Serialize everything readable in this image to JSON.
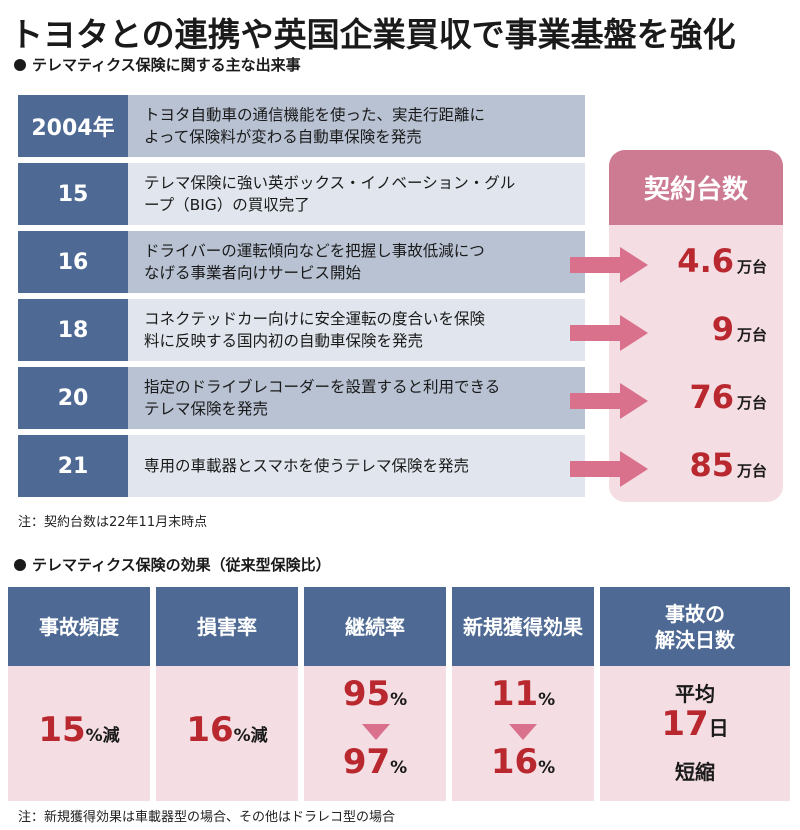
{
  "title": "トヨタとの連携や英国企業買収で事業基盤を強化",
  "section1": {
    "heading": "テレマティクス保険に関する主な出来事"
  },
  "history": [
    {
      "year": "2004年",
      "text1": "トヨタ自動車の通信機能を使った、実走行距離に",
      "text2": "よって保険料が変わる自動車保険を発売"
    },
    {
      "year": "15",
      "text1": "テレマ保険に強い英ボックス・イノベーション・グル",
      "text2": "ープ（BIG）の買収完了"
    },
    {
      "year": "16",
      "text1": "ドライバーの運転傾向などを把握し事故低減につ",
      "text2": "なげる事業者向けサービス開始"
    },
    {
      "year": "18",
      "text1": "コネクテッドカー向けに安全運転の度合いを保険",
      "text2": "料に反映する国内初の自動車保険を発売"
    },
    {
      "year": "20",
      "text1": "指定のドライブレコーダーを設置すると利用できる",
      "text2": "テレマ保険を発売"
    },
    {
      "year": "21",
      "text1": "専用の車載器とスマホを使うテレマ保険を発売",
      "text2": ""
    }
  ],
  "contracts": {
    "heading": "契約台数",
    "unit": "万台",
    "values": [
      "4.6",
      "9",
      "76",
      "85"
    ]
  },
  "note1": "注：契約台数は22年11月末時点",
  "section2": {
    "heading": "テレマティクス保険の効果（従来型保険比）"
  },
  "effects": {
    "accident_freq": {
      "label": "事故頻度",
      "value": "15",
      "unit": "%減"
    },
    "loss_ratio": {
      "label": "損害率",
      "value": "16",
      "unit": "%減"
    },
    "retention": {
      "label": "継続率",
      "from": "95",
      "to": "97",
      "unit": "%"
    },
    "new_acq": {
      "label": "新規獲得効果",
      "from": "11",
      "to": "16",
      "unit": "%"
    },
    "resolution": {
      "label1": "事故の",
      "label2": "解決日数",
      "line1": "平均",
      "value": "17",
      "unit": "日",
      "line3": "短縮"
    }
  },
  "note2": "注：新規獲得効果は車載器型の場合、その他はドラレコ型の場合",
  "colors": {
    "navy": "#4e6a94",
    "pink_head": "#cc7b92",
    "pink_bg": "#f4dde3",
    "red": "#b8282e",
    "arrow": "#d9708c"
  }
}
